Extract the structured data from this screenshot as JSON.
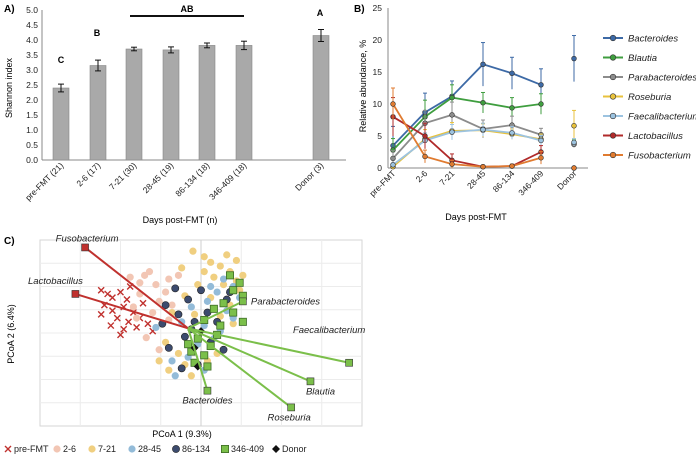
{
  "chart_data": [
    {
      "panel": "A)",
      "type": "bar",
      "title": "",
      "ylabel": "Shannon index",
      "xlabel": "Days post-FMT (n)",
      "ylim": [
        0,
        5
      ],
      "yticks": [
        "0.0",
        "0.5",
        "1.0",
        "1.5",
        "2.0",
        "2.5",
        "3.0",
        "3.5",
        "4.0",
        "4.5",
        "5.0"
      ],
      "categories": [
        "pre-FMT (21)",
        "2-6 (17)",
        "7-21 (30)",
        "28-45 (19)",
        "86-134 (18)",
        "346-409 (18)",
        "Donor (3)"
      ],
      "values": [
        2.4,
        3.15,
        3.7,
        3.67,
        3.82,
        3.82,
        4.15
      ],
      "errors": [
        0.13,
        0.18,
        0.06,
        0.1,
        0.08,
        0.14,
        0.2
      ],
      "group_labels": {
        "c": "C",
        "b": "B",
        "ab": "AB",
        "a": "A"
      }
    },
    {
      "panel": "B)",
      "type": "line",
      "ylabel": "Relative abundance, %",
      "xlabel": "Days post-FMT",
      "ylim": [
        0,
        25
      ],
      "yticks": [
        "0",
        "5",
        "10",
        "15",
        "20",
        "25"
      ],
      "categories": [
        "pre-FMT",
        "2-6",
        "7-21",
        "28-45",
        "86-134",
        "346-409",
        "Donor"
      ],
      "series": [
        {
          "name": "Bacteroides",
          "color": "#3d6aa6",
          "values": [
            3.5,
            8.7,
            11.2,
            16.2,
            14.8,
            13.0,
            17.1
          ],
          "errors": [
            3.0,
            3.0,
            2.4,
            3.4,
            2.5,
            2.5,
            3.6
          ]
        },
        {
          "name": "Blautia",
          "color": "#3f9e3f",
          "values": [
            2.8,
            8.0,
            11.0,
            10.2,
            9.4,
            10.0,
            3.8
          ],
          "errors": [
            1.8,
            2.6,
            2.0,
            1.6,
            1.6,
            1.6,
            0.6
          ]
        },
        {
          "name": "Parabacteroides",
          "color": "#8c8c8c",
          "values": [
            1.5,
            7.0,
            8.3,
            6.1,
            6.7,
            5.2,
            3.7
          ],
          "errors": [
            1.2,
            2.0,
            2.0,
            1.4,
            1.4,
            1.0,
            0.5
          ]
        },
        {
          "name": "Roseburia",
          "color": "#e8c23c",
          "values": [
            0.2,
            4.5,
            5.8,
            5.9,
            5.3,
            4.5,
            6.6
          ],
          "errors": [
            0.2,
            1.5,
            1.3,
            1.0,
            0.8,
            0.8,
            2.4
          ]
        },
        {
          "name": "Faecalibacterium",
          "color": "#9cc3e0",
          "values": [
            0.5,
            4.3,
            5.6,
            6.0,
            5.5,
            4.3,
            4.0
          ],
          "errors": [
            0.3,
            1.2,
            1.2,
            1.0,
            1.0,
            0.8,
            0.6
          ]
        },
        {
          "name": "Lactobacillus",
          "color": "#b02a2a",
          "values": [
            8.0,
            5.0,
            1.2,
            0.2,
            0.3,
            2.5,
            0.0
          ],
          "errors": [
            3.0,
            2.0,
            1.0,
            0.2,
            0.3,
            1.0,
            0.0
          ]
        },
        {
          "name": "Fusobacterium",
          "color": "#e07b30",
          "values": [
            10.0,
            1.8,
            0.6,
            0.2,
            0.3,
            1.6,
            0.0
          ],
          "errors": [
            2.5,
            1.0,
            0.6,
            0.2,
            0.3,
            1.0,
            0.0
          ]
        }
      ]
    },
    {
      "panel": "C)",
      "type": "scatter",
      "xlabel": "PCoA 1 (9.3%)",
      "ylabel": "PCoA 2 (6.4%)",
      "xlim": [
        -1,
        1
      ],
      "ylim": [
        -1,
        1
      ],
      "origin": [
        -0.08,
        0.05
      ],
      "vectors": [
        {
          "name": "Fusobacterium",
          "color": "#c0312e",
          "end": [
            -0.72,
            0.92
          ],
          "label_side": "above"
        },
        {
          "name": "Lactobacillus",
          "color": "#c0312e",
          "end": [
            -0.78,
            0.42
          ],
          "label_side": "above"
        },
        {
          "name": "Parabacteroides",
          "color": "#7bbf4a",
          "end": [
            0.26,
            0.34
          ],
          "label_side": "right"
        },
        {
          "name": "Faecalibacterium",
          "color": "#7bbf4a",
          "end": [
            0.92,
            -0.32
          ],
          "label_side": "above"
        },
        {
          "name": "Blautia",
          "color": "#7bbf4a",
          "end": [
            0.68,
            -0.52
          ],
          "label_side": "below"
        },
        {
          "name": "Roseburia",
          "color": "#7bbf4a",
          "end": [
            0.56,
            -0.8
          ],
          "label_side": "below"
        },
        {
          "name": "Bacteroides",
          "color": "#7bbf4a",
          "end": [
            0.04,
            -0.62
          ],
          "label_side": "below"
        }
      ],
      "groups": [
        {
          "name": "pre-FMT",
          "marker": "x",
          "color": "#c0312e",
          "points": [
            [
              -0.62,
              0.46
            ],
            [
              -0.58,
              0.42
            ],
            [
              -0.55,
              0.38
            ],
            [
              -0.5,
              0.44
            ],
            [
              -0.46,
              0.36
            ],
            [
              -0.6,
              0.3
            ],
            [
              -0.55,
              0.24
            ],
            [
              -0.48,
              0.28
            ],
            [
              -0.42,
              0.22
            ],
            [
              -0.52,
              0.16
            ],
            [
              -0.45,
              0.12
            ],
            [
              -0.38,
              0.16
            ],
            [
              -0.56,
              0.08
            ],
            [
              -0.48,
              0.04
            ],
            [
              -0.4,
              0.06
            ],
            [
              -0.33,
              0.1
            ],
            [
              -0.62,
              0.2
            ],
            [
              -0.44,
              0.5
            ],
            [
              -0.36,
              0.32
            ],
            [
              -0.3,
              0.02
            ],
            [
              -0.5,
              -0.02
            ]
          ]
        },
        {
          "name": "2-6",
          "marker": "circle",
          "color": "#f2c6b4",
          "points": [
            [
              -0.35,
              0.62
            ],
            [
              -0.28,
              0.52
            ],
            [
              -0.2,
              0.58
            ],
            [
              -0.38,
              0.42
            ],
            [
              -0.26,
              0.34
            ],
            [
              -0.42,
              0.28
            ],
            [
              -0.3,
              0.22
            ],
            [
              -0.34,
              -0.05
            ],
            [
              -0.26,
              -0.18
            ],
            [
              -0.38,
              0.54
            ],
            [
              -0.22,
              0.44
            ],
            [
              -0.18,
              0.3
            ],
            [
              -0.32,
              0.66
            ],
            [
              -0.14,
              0.62
            ],
            [
              -0.4,
              0.16
            ],
            [
              -0.2,
              0.14
            ],
            [
              -0.44,
              0.6
            ]
          ]
        },
        {
          "name": "7-21",
          "marker": "circle",
          "color": "#f0cf80",
          "points": [
            [
              -0.05,
              0.88
            ],
            [
              0.02,
              0.82
            ],
            [
              0.06,
              0.76
            ],
            [
              0.12,
              0.72
            ],
            [
              0.18,
              0.66
            ],
            [
              0.22,
              0.56
            ],
            [
              0.14,
              0.52
            ],
            [
              0.08,
              0.6
            ],
            [
              -0.02,
              0.52
            ],
            [
              0.24,
              0.46
            ],
            [
              -0.1,
              0.4
            ],
            [
              0.06,
              0.38
            ],
            [
              0.18,
              0.3
            ],
            [
              -0.18,
              0.22
            ],
            [
              -0.04,
              0.2
            ],
            [
              0.12,
              0.18
            ],
            [
              0.2,
              0.1
            ],
            [
              -0.22,
              -0.1
            ],
            [
              -0.14,
              -0.22
            ],
            [
              -0.1,
              -0.34
            ],
            [
              -0.2,
              -0.4
            ],
            [
              -0.06,
              -0.46
            ],
            [
              0.04,
              -0.3
            ],
            [
              0.1,
              -0.22
            ],
            [
              -0.26,
              -0.3
            ],
            [
              0.22,
              0.78
            ],
            [
              0.26,
              0.62
            ],
            [
              -0.12,
              0.7
            ],
            [
              0.02,
              0.66
            ],
            [
              0.16,
              0.84
            ]
          ]
        },
        {
          "name": "28-45",
          "marker": "circle",
          "color": "#93bbd8",
          "points": [
            [
              0.14,
              0.58
            ],
            [
              0.2,
              0.5
            ],
            [
              0.1,
              0.44
            ],
            [
              0.04,
              0.34
            ],
            [
              -0.06,
              0.28
            ],
            [
              0.16,
              0.24
            ],
            [
              -0.12,
              0.12
            ],
            [
              0.02,
              0.08
            ],
            [
              0.12,
              0.02
            ],
            [
              -0.18,
              -0.3
            ],
            [
              -0.08,
              -0.26
            ],
            [
              0.02,
              -0.4
            ],
            [
              -0.16,
              -0.46
            ],
            [
              0.24,
              0.38
            ],
            [
              -0.02,
              -0.12
            ],
            [
              0.08,
              -0.06
            ],
            [
              0.2,
              0.16
            ],
            [
              -0.28,
              0.06
            ],
            [
              0.06,
              0.5
            ]
          ]
        },
        {
          "name": "86-134",
          "marker": "circle",
          "color": "#3c4b6e",
          "points": [
            [
              -0.16,
              0.48
            ],
            [
              -0.08,
              0.36
            ],
            [
              0.0,
              0.46
            ],
            [
              -0.22,
              0.3
            ],
            [
              -0.14,
              0.2
            ],
            [
              0.04,
              0.22
            ],
            [
              -0.04,
              0.12
            ],
            [
              0.16,
              0.36
            ],
            [
              -0.24,
              0.1
            ],
            [
              -0.1,
              -0.04
            ],
            [
              0.06,
              -0.1
            ],
            [
              -0.2,
              -0.16
            ],
            [
              -0.12,
              -0.38
            ],
            [
              -0.02,
              -0.34
            ],
            [
              0.14,
              -0.18
            ],
            [
              0.18,
              0.44
            ],
            [
              -0.06,
              0.04
            ],
            [
              0.1,
              0.12
            ]
          ]
        },
        {
          "name": "346-409",
          "marker": "square",
          "color": "#7bbf4a",
          "points": [
            [
              0.18,
              0.62
            ],
            [
              0.24,
              0.54
            ],
            [
              0.2,
              0.46
            ],
            [
              0.26,
              0.4
            ],
            [
              0.14,
              0.32
            ],
            [
              0.08,
              0.26
            ],
            [
              0.2,
              0.22
            ],
            [
              0.02,
              0.14
            ],
            [
              0.12,
              0.08
            ],
            [
              0.26,
              0.12
            ],
            [
              -0.02,
              -0.06
            ],
            [
              0.06,
              -0.14
            ],
            [
              -0.06,
              -0.2
            ],
            [
              0.02,
              -0.24
            ],
            [
              -0.04,
              -0.32
            ],
            [
              0.04,
              -0.36
            ],
            [
              -0.08,
              -0.12
            ],
            [
              0.1,
              -0.02
            ]
          ]
        },
        {
          "name": "Donor",
          "marker": "diamond",
          "color": "#111111",
          "points": [
            [
              0.0,
              0.02
            ],
            [
              -0.04,
              -0.16
            ],
            [
              -0.02,
              -0.36
            ]
          ]
        }
      ],
      "legend": [
        "pre-FMT",
        "2-6",
        "7-21",
        "28-45",
        "86-134",
        "346-409",
        "Donor"
      ]
    }
  ]
}
